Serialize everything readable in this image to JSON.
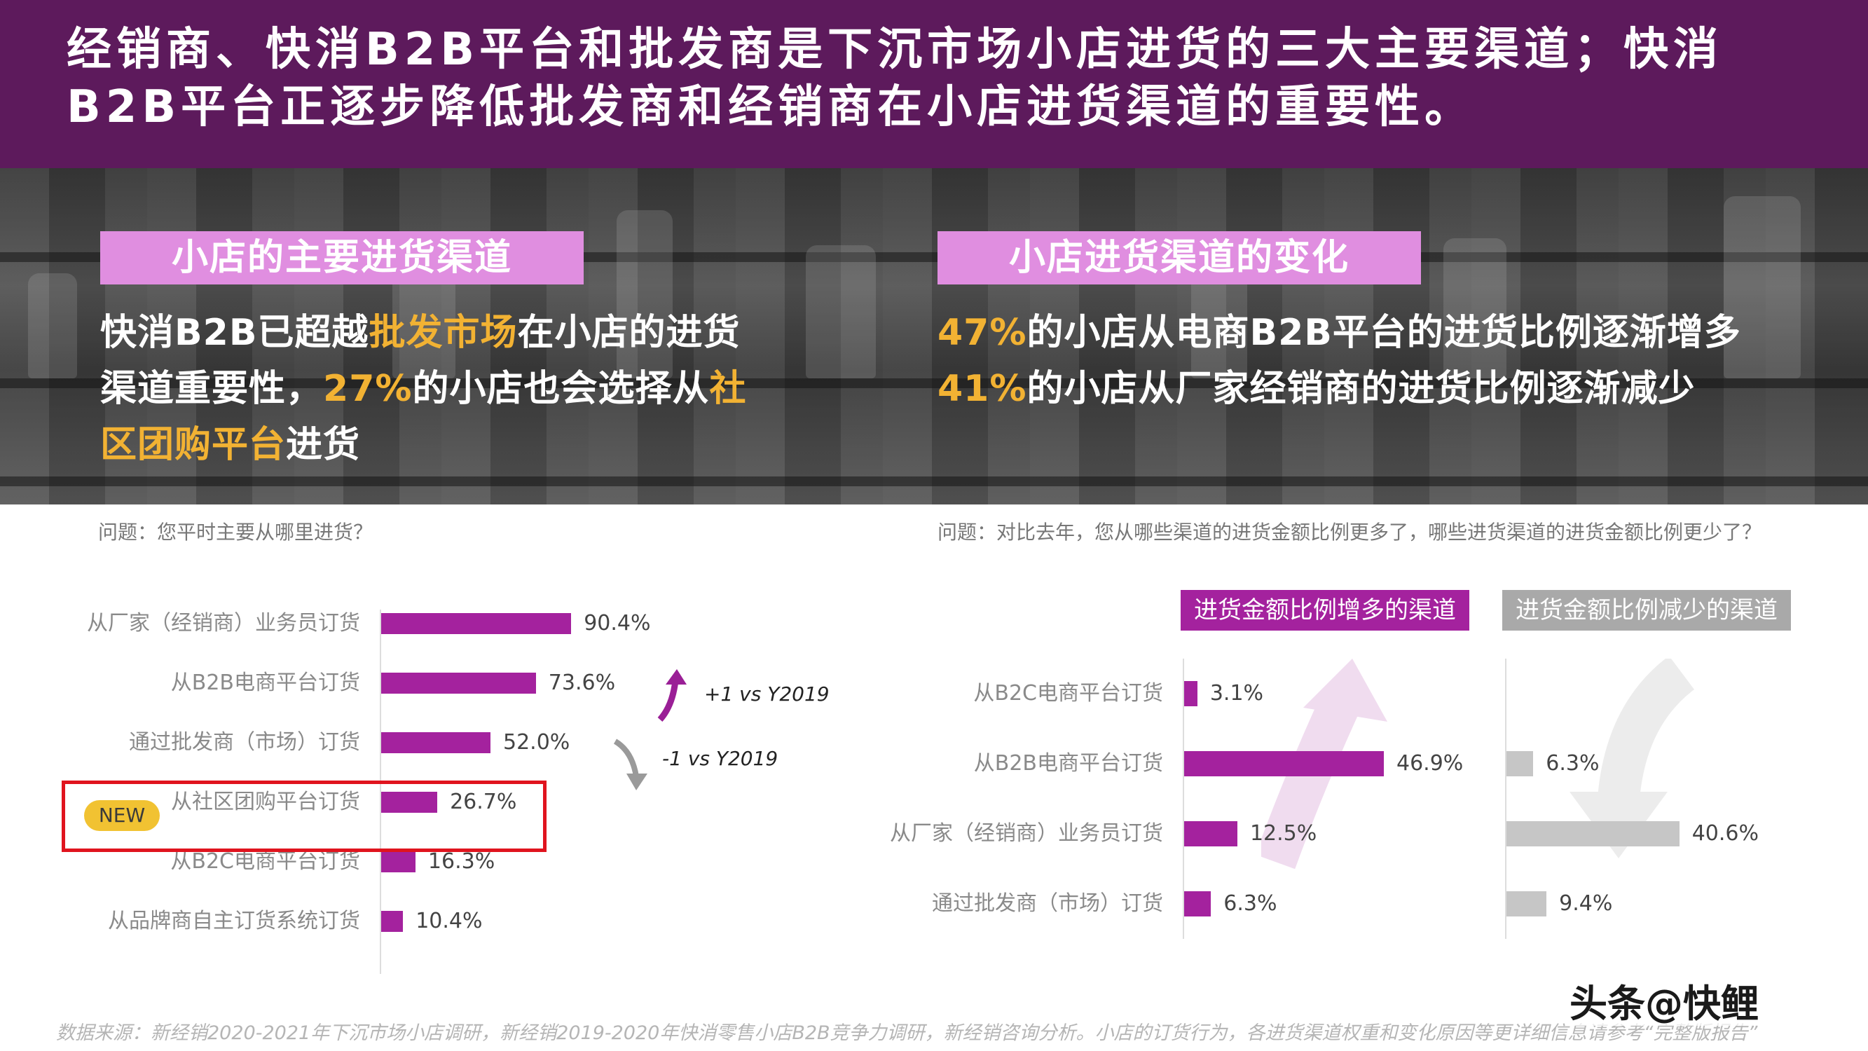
{
  "header": {
    "title": "经销商、快消B2B平台和批发商是下沉市场小店进货的三大主要渠道；快消B2B平台正逐步降低批发商和经销商在小店进货渠道的重要性。"
  },
  "left_section": {
    "heading": "小店的主要进货渠道",
    "text_parts": [
      "快消B2B已超越",
      "批发市场",
      "在小店的进货渠道重要性，",
      "27%",
      "的小店也会选择从",
      "社区团购平台",
      "进货"
    ],
    "question": "问题：您平时主要从哪里进货？"
  },
  "right_section": {
    "heading": "小店进货渠道的变化",
    "line1": [
      "47%",
      "的小店从电商B2B平台的进货比例逐渐增多"
    ],
    "line2": [
      "41%",
      "的小店从厂家经销商的进货比例逐渐减少"
    ],
    "question": "问题：对比去年，您从哪些渠道的进货金额比例更多了，哪些进货渠道的进货金额比例更少了？"
  },
  "colors": {
    "header": "#5d1a5c",
    "pill": "#e08ee0",
    "highlight": "#f2b233",
    "bar": "#a4229e",
    "bar_gray": "#c6c6c6",
    "new_frame": "#e0141e",
    "new_badge": "#f1c232"
  },
  "chart_data": [
    {
      "type": "bar",
      "orientation": "horizontal",
      "categories": [
        "从厂家（经销商）业务员订货",
        "从B2B电商平台订货",
        "通过批发商（市场）订货",
        "从社区团购平台订货",
        "从B2C电商平台订货",
        "从品牌商自主订货系统订货"
      ],
      "values": [
        90.4,
        73.6,
        52.0,
        26.7,
        16.3,
        10.4
      ],
      "value_labels": [
        "90.4%",
        "73.6%",
        "52.0%",
        "26.7%",
        "16.3%",
        "10.4%"
      ],
      "xlim": [
        0,
        100
      ],
      "highlight": {
        "category": "从社区团购平台订货",
        "badge": "NEW"
      },
      "annotations": [
        {
          "category": "从B2B电商平台订货",
          "text": "+1 vs Y2019",
          "direction": "up"
        },
        {
          "category": "通过批发商（市场）订货",
          "text": "-1 vs Y2019",
          "direction": "down"
        }
      ]
    },
    {
      "type": "bar",
      "orientation": "horizontal",
      "categories": [
        "从B2C电商平台订货",
        "从B2B电商平台订货",
        "从厂家（经销商）业务员订货",
        "通过批发商（市场）订货"
      ],
      "series": [
        {
          "name": "进货金额比例增多的渠道",
          "values": [
            3.1,
            46.9,
            12.5,
            6.3
          ],
          "labels": [
            "3.1%",
            "46.9%",
            "12.5%",
            "6.3%"
          ]
        },
        {
          "name": "进货金额比例减少的渠道",
          "values": [
            null,
            6.3,
            40.6,
            9.4
          ],
          "labels": [
            "",
            "6.3%",
            "40.6%",
            "9.4%"
          ]
        }
      ],
      "xlim": [
        0,
        100
      ]
    }
  ],
  "footer": "数据来源：新经销2020-2021年下沉市场小店调研，新经销2019-2020年快消零售小店B2B竞争力调研，新经销咨询分析。小店的订货行为，各进货渠道权重和变化原因等更详细信息请参考“完整版报告”",
  "watermark": "头条@快鲤"
}
